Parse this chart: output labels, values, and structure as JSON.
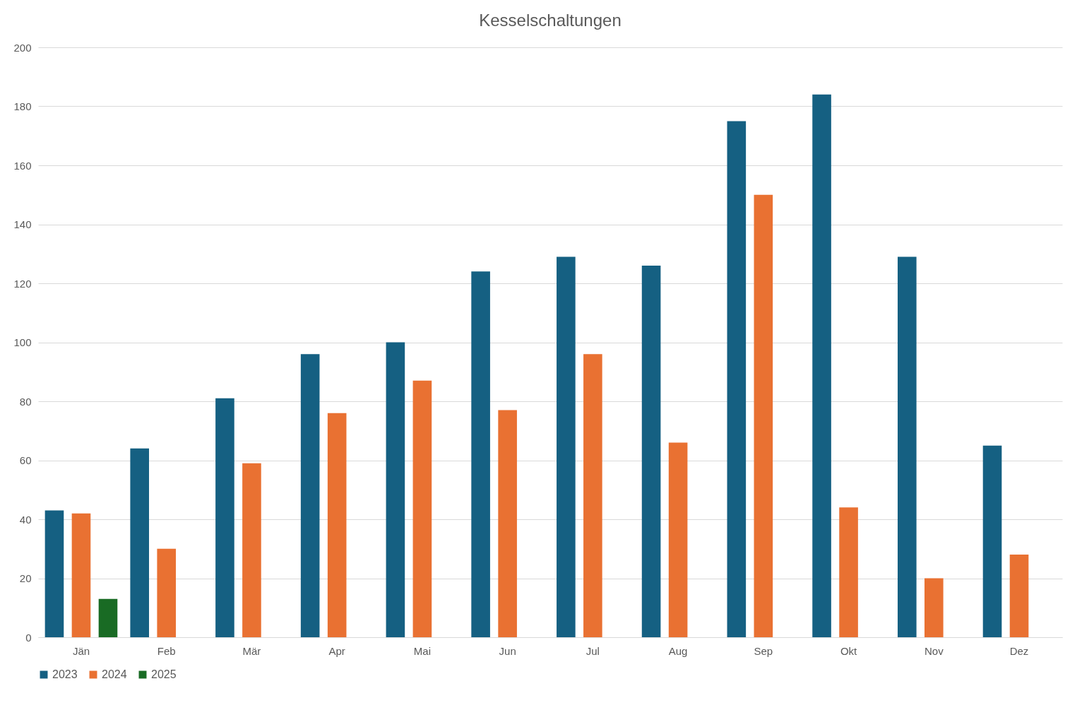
{
  "chart_data": {
    "type": "bar",
    "title": "Kesselschaltungen",
    "categories": [
      "Jän",
      "Feb",
      "Mär",
      "Apr",
      "Mai",
      "Jun",
      "Jul",
      "Aug",
      "Sep",
      "Okt",
      "Nov",
      "Dez"
    ],
    "series": [
      {
        "name": "2023",
        "color": "#156082",
        "values": [
          43,
          64,
          81,
          96,
          100,
          124,
          129,
          126,
          175,
          184,
          129,
          65
        ]
      },
      {
        "name": "2024",
        "color": "#e97132",
        "values": [
          42,
          30,
          59,
          76,
          87,
          77,
          96,
          66,
          150,
          44,
          20,
          28
        ]
      },
      {
        "name": "2025",
        "color": "#196b24",
        "values": [
          13,
          null,
          null,
          null,
          null,
          null,
          null,
          null,
          null,
          null,
          null,
          null
        ]
      }
    ],
    "ylim": [
      0,
      200
    ],
    "yticks": [
      0,
      20,
      40,
      60,
      80,
      100,
      120,
      140,
      160,
      180,
      200
    ],
    "grid": "y",
    "legend": "bottom"
  }
}
